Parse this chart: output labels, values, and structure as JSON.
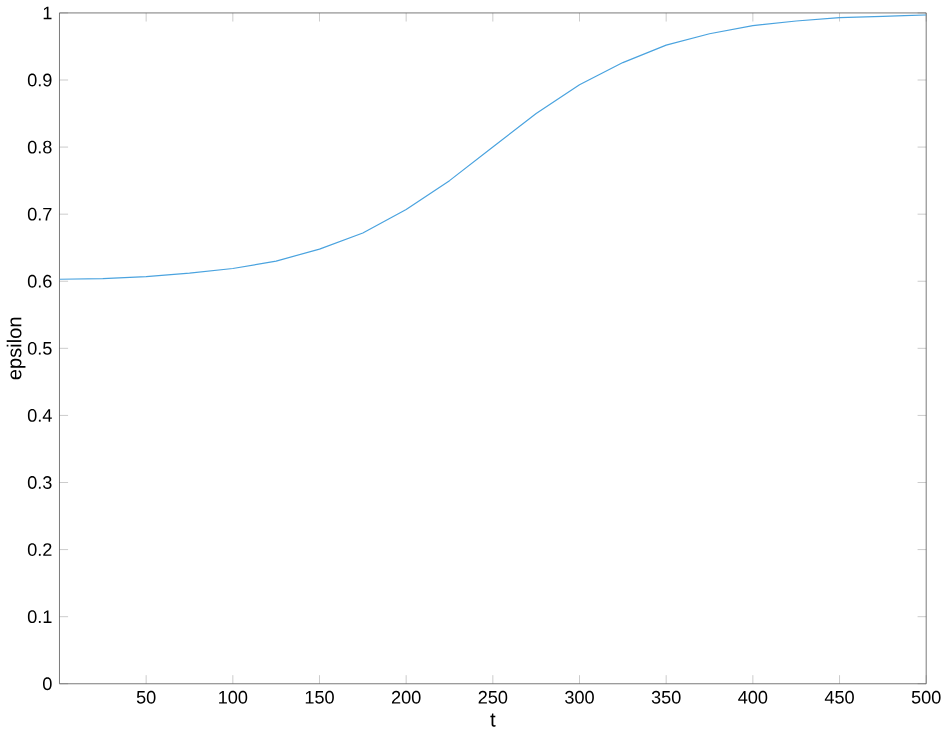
{
  "chart_data": {
    "type": "line",
    "xlabel": "t",
    "ylabel": "epsilon",
    "x": [
      0,
      25,
      50,
      75,
      100,
      125,
      150,
      175,
      200,
      225,
      250,
      275,
      300,
      325,
      350,
      375,
      400,
      425,
      450,
      475,
      500
    ],
    "series": [
      {
        "color": "#4aa3df",
        "values": [
          0.603,
          0.604,
          0.607,
          0.612,
          0.619,
          0.63,
          0.648,
          0.672,
          0.707,
          0.75,
          0.8,
          0.85,
          0.893,
          0.926,
          0.952,
          0.969,
          0.981,
          0.988,
          0.993,
          0.995,
          0.997
        ]
      }
    ],
    "xlim": [
      0,
      500
    ],
    "ylim": [
      0,
      1
    ],
    "xticks": [
      50,
      100,
      150,
      200,
      250,
      300,
      350,
      400,
      450,
      500
    ],
    "yticks": [
      0,
      0.1,
      0.2,
      0.3,
      0.4,
      0.5,
      0.6,
      0.7,
      0.8,
      0.9,
      1
    ]
  }
}
